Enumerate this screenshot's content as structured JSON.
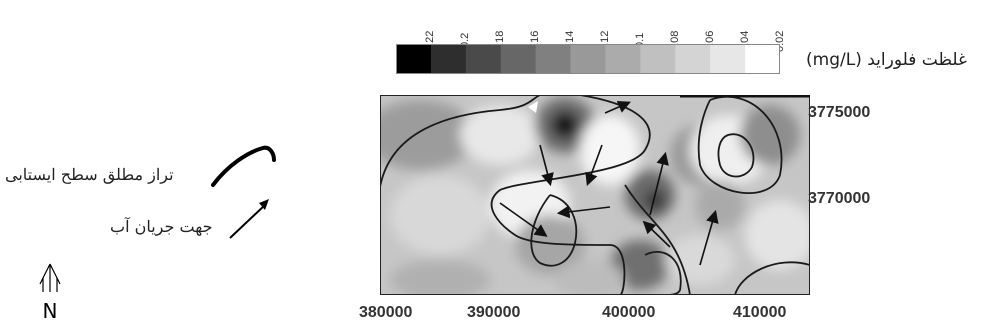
{
  "legend": {
    "title": "غلظت فلوراید (mg/L)",
    "ticks": [
      "0.22",
      "0.2",
      "0.18",
      "0.16",
      "0.14",
      "0.12",
      "0.1",
      "0.08",
      "0.06",
      "0.04",
      "0.02"
    ],
    "colors": [
      "#000000",
      "#2e2e2e",
      "#4a4a4a",
      "#676767",
      "#808080",
      "#999999",
      "#ababab",
      "#c0c0c0",
      "#d4d4d4",
      "#e7e7e7",
      "#ffffff"
    ]
  },
  "map": {
    "x_ticks": [
      "380000",
      "390000",
      "400000",
      "410000"
    ],
    "y_ticks": [
      "3775000",
      "3770000"
    ]
  },
  "side_legend": {
    "water_table": "تراز مطلق سطح ایستابی",
    "flow_direction": "جهت جریان آب"
  },
  "north_arrow": "N"
}
